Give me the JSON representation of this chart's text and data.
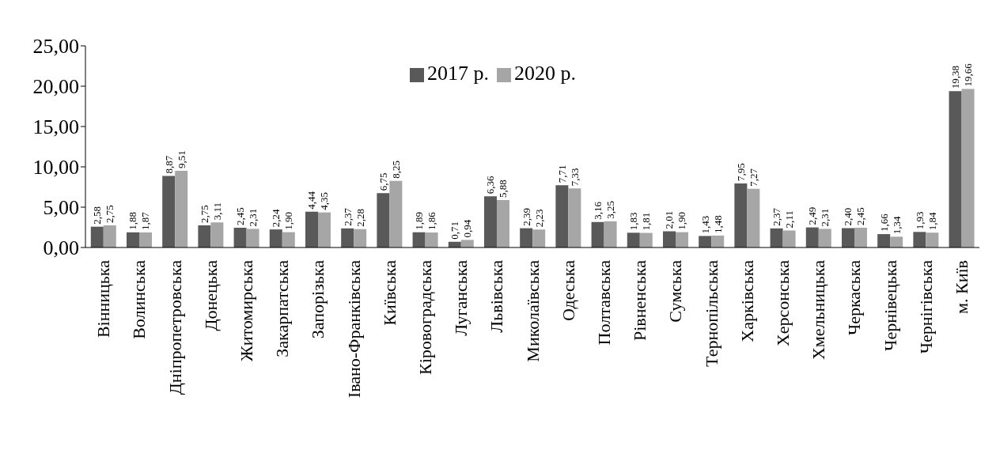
{
  "chart_data": {
    "type": "bar",
    "categories": [
      "Вінницька",
      "Волинська",
      "Дніпропетровська",
      "Донецька",
      "Житомирська",
      "Закарпатська",
      "Запорізька",
      "Івано-Франківська",
      "Київська",
      "Кіровоградська",
      "Луганська",
      "Львівська",
      "Миколаївська",
      "Одеська",
      "Полтавська",
      "Рівненська",
      "Сумська",
      "Тернопільська",
      "Харківська",
      "Херсонська",
      "Хмельницька",
      "Черкаська",
      "Чернівецька",
      "Чернігівська",
      "м. Київ"
    ],
    "series": [
      {
        "name": "2017 р.",
        "color": "#595959",
        "values": [
          2.58,
          1.88,
          8.87,
          2.75,
          2.45,
          2.24,
          4.44,
          2.37,
          6.75,
          1.89,
          0.71,
          6.36,
          2.39,
          7.71,
          3.16,
          1.83,
          2.01,
          1.43,
          7.95,
          2.37,
          2.49,
          2.4,
          1.66,
          1.93,
          19.38
        ],
        "value_labels": [
          "2,58",
          "1,88",
          "8,87",
          "2,75",
          "2,45",
          "2,24",
          "4,44",
          "2,37",
          "6,75",
          "1,89",
          "0,71",
          "6,36",
          "2,39",
          "7,71",
          "3,16",
          "1,83",
          "2,01",
          "1,43",
          "7,95",
          "2,37",
          "2,49",
          "2,40",
          "1,66",
          "1,93",
          "19,38"
        ]
      },
      {
        "name": "2020 р.",
        "color": "#a6a6a6",
        "values": [
          2.75,
          1.87,
          9.51,
          3.11,
          2.31,
          1.9,
          4.35,
          2.28,
          8.25,
          1.86,
          0.94,
          5.88,
          2.23,
          7.33,
          3.25,
          1.81,
          1.9,
          1.48,
          7.27,
          2.11,
          2.31,
          2.45,
          1.34,
          1.84,
          19.66
        ],
        "value_labels": [
          "2,75",
          "1,87",
          "9,51",
          "3,11",
          "2,31",
          "1,90",
          "4,35",
          "2,28",
          "8,25",
          "1,86",
          "0,94",
          "5,88",
          "2,23",
          "7,33",
          "3,25",
          "1,81",
          "1,90",
          "1,48",
          "7,27",
          "2,11",
          "2,31",
          "2,45",
          "1,34",
          "1,84",
          "19,66"
        ]
      }
    ],
    "ylim": [
      0,
      25
    ],
    "yticks": [
      {
        "value": 0,
        "label": "0,00"
      },
      {
        "value": 5,
        "label": "5,00"
      },
      {
        "value": 10,
        "label": "10,00"
      },
      {
        "value": 15,
        "label": "15,00"
      },
      {
        "value": 20,
        "label": "20,00"
      },
      {
        "value": 25,
        "label": "25,00"
      }
    ],
    "grid": false,
    "legend": "top"
  }
}
